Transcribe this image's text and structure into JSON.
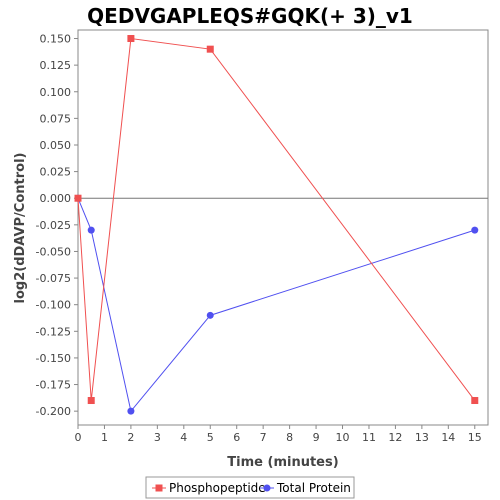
{
  "chart_data": {
    "type": "line",
    "title": "QEDVGAPLEQS#GQK(+ 3)_v1",
    "xlabel": "Time (minutes)",
    "ylabel": "log2(dDAVP/Control)",
    "xlim": [
      0,
      15.5
    ],
    "ylim": [
      -0.213,
      0.158
    ],
    "x_ticks": [
      0,
      1,
      2,
      3,
      4,
      5,
      6,
      7,
      8,
      9,
      10,
      11,
      12,
      13,
      14,
      15
    ],
    "y_ticks": [
      0.15,
      0.125,
      0.1,
      0.075,
      0.05,
      0.025,
      0.0,
      -0.025,
      -0.05,
      -0.075,
      -0.1,
      -0.125,
      -0.15,
      -0.175,
      -0.2
    ],
    "y_tick_labels": [
      "0.150",
      "0.125",
      "0.100",
      "0.075",
      "0.050",
      "0.025",
      "0.000",
      "-0.025",
      "-0.050",
      "-0.075",
      "-0.100",
      "-0.125",
      "-0.150",
      "-0.175",
      "-0.200"
    ],
    "grid": false,
    "zero_line": true,
    "legend_position": "bottom",
    "series": [
      {
        "name": "Phosphopeptide",
        "color": "#f05050",
        "marker": "square",
        "x": [
          0,
          0.5,
          2,
          5,
          15
        ],
        "y": [
          0.0,
          -0.19,
          0.15,
          0.14,
          -0.19
        ]
      },
      {
        "name": "Total Protein",
        "color": "#5050f0",
        "marker": "circle",
        "x": [
          0,
          0.5,
          2,
          5,
          15
        ],
        "y": [
          0.0,
          -0.03,
          -0.2,
          -0.11,
          -0.03
        ]
      }
    ]
  }
}
